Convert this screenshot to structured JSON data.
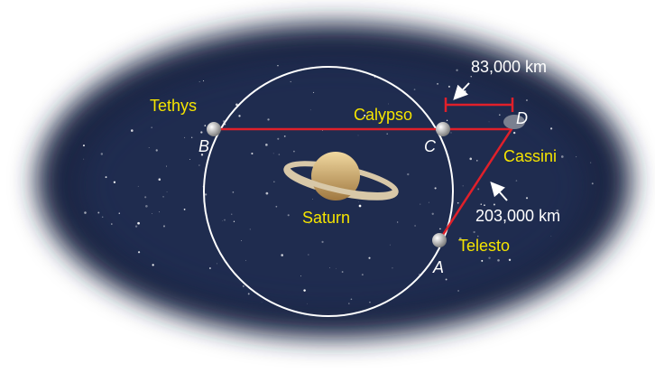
{
  "points": {
    "tethys": {
      "name": "Tethys",
      "letter": "B"
    },
    "calypso": {
      "name": "Calypso",
      "letter": "C"
    },
    "cassini": {
      "name": "Cassini",
      "letter": "D"
    },
    "telesto": {
      "name": "Telesto",
      "letter": "A"
    }
  },
  "planet": "Saturn",
  "measurements": {
    "cd": "83,000 km",
    "da": "203,000 km"
  }
}
